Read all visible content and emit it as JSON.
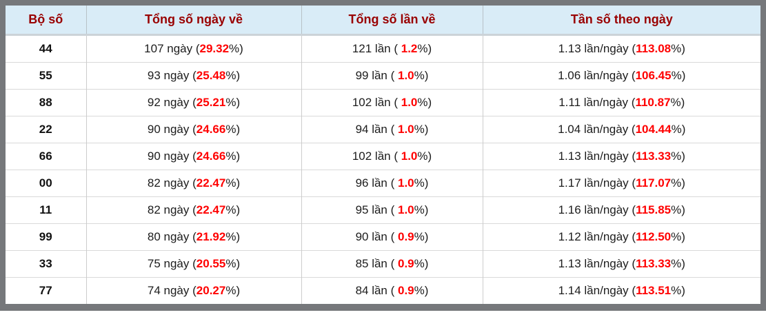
{
  "colors": {
    "frame_border": "#76787b",
    "header_bg": "#d9ecf7",
    "header_text": "#990000",
    "highlight_red": "#ff0000",
    "body_text": "#1c1c1c",
    "grid_line": "#cccccc"
  },
  "table": {
    "headers": [
      "Bộ số",
      "Tổng số ngày về",
      "Tổng số lần về",
      "Tần số theo ngày"
    ],
    "rows": [
      {
        "pair": "44",
        "days": {
          "pre": "107 ngày (",
          "value": "29.32",
          "post": "%)"
        },
        "times": {
          "pre": "121 lần ( ",
          "value": "1.2",
          "post": "%)"
        },
        "freq": {
          "pre": "1.13 lần/ngày (",
          "value": "113.08",
          "post": "%)"
        }
      },
      {
        "pair": "55",
        "days": {
          "pre": "93 ngày (",
          "value": "25.48",
          "post": "%)"
        },
        "times": {
          "pre": "99 lần ( ",
          "value": "1.0",
          "post": "%)"
        },
        "freq": {
          "pre": "1.06 lần/ngày (",
          "value": "106.45",
          "post": "%)"
        }
      },
      {
        "pair": "88",
        "days": {
          "pre": "92 ngày (",
          "value": "25.21",
          "post": "%)"
        },
        "times": {
          "pre": "102 lần ( ",
          "value": "1.0",
          "post": "%)"
        },
        "freq": {
          "pre": "1.11 lần/ngày (",
          "value": "110.87",
          "post": "%)"
        }
      },
      {
        "pair": "22",
        "days": {
          "pre": "90 ngày (",
          "value": "24.66",
          "post": "%)"
        },
        "times": {
          "pre": "94 lần ( ",
          "value": "1.0",
          "post": "%)"
        },
        "freq": {
          "pre": "1.04 lần/ngày (",
          "value": "104.44",
          "post": "%)"
        }
      },
      {
        "pair": "66",
        "days": {
          "pre": "90 ngày (",
          "value": "24.66",
          "post": "%)"
        },
        "times": {
          "pre": "102 lần ( ",
          "value": "1.0",
          "post": "%)"
        },
        "freq": {
          "pre": "1.13 lần/ngày (",
          "value": "113.33",
          "post": "%)"
        }
      },
      {
        "pair": "00",
        "days": {
          "pre": "82 ngày (",
          "value": "22.47",
          "post": "%)"
        },
        "times": {
          "pre": "96 lần ( ",
          "value": "1.0",
          "post": "%)"
        },
        "freq": {
          "pre": "1.17 lần/ngày (",
          "value": "117.07",
          "post": "%)"
        }
      },
      {
        "pair": "11",
        "days": {
          "pre": "82 ngày (",
          "value": "22.47",
          "post": "%)"
        },
        "times": {
          "pre": "95 lần ( ",
          "value": "1.0",
          "post": "%)"
        },
        "freq": {
          "pre": "1.16 lần/ngày (",
          "value": "115.85",
          "post": "%)"
        }
      },
      {
        "pair": "99",
        "days": {
          "pre": "80 ngày (",
          "value": "21.92",
          "post": "%)"
        },
        "times": {
          "pre": "90 lần ( ",
          "value": "0.9",
          "post": "%)"
        },
        "freq": {
          "pre": "1.12 lần/ngày (",
          "value": "112.50",
          "post": "%)"
        }
      },
      {
        "pair": "33",
        "days": {
          "pre": "75 ngày (",
          "value": "20.55",
          "post": "%)"
        },
        "times": {
          "pre": "85 lần ( ",
          "value": "0.9",
          "post": "%)"
        },
        "freq": {
          "pre": "1.13 lần/ngày (",
          "value": "113.33",
          "post": "%)"
        }
      },
      {
        "pair": "77",
        "days": {
          "pre": "74 ngày (",
          "value": "20.27",
          "post": "%)"
        },
        "times": {
          "pre": "84 lần ( ",
          "value": "0.9",
          "post": "%)"
        },
        "freq": {
          "pre": "1.14 lần/ngày (",
          "value": "113.51",
          "post": "%)"
        }
      }
    ]
  }
}
